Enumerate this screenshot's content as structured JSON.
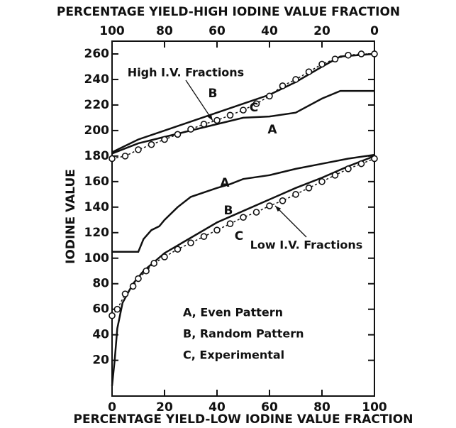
{
  "chart_data": {
    "type": "line",
    "title": "PERCENTAGE YIELD-HIGH IODINE VALUE FRACTION",
    "x_label": "PERCENTAGE YIELD-LOW IODINE VALUE FRACTION",
    "y_label": "IODINE VALUE",
    "xlim": [
      0,
      100
    ],
    "xticks": [
      0,
      20,
      40,
      60,
      80,
      100
    ],
    "x2lim": [
      100,
      0
    ],
    "x2ticks": [
      100,
      80,
      60,
      40,
      20,
      0
    ],
    "ylim": [
      -8,
      270
    ],
    "yticks": [
      20,
      40,
      60,
      80,
      100,
      120,
      140,
      160,
      180,
      200,
      220,
      240,
      260
    ],
    "annotations": [
      "High I.V. Fractions",
      "Low I.V. Fractions",
      "A, Even Pattern",
      "B, Random Pattern",
      "C, Experimental"
    ],
    "series": [
      {
        "name": "A",
        "color": "#111111",
        "dash": false,
        "marker": false,
        "x": [
          0,
          10,
          20,
          30,
          40,
          50,
          60,
          70,
          80,
          87,
          100
        ],
        "values": [
          182,
          190,
          195,
          200,
          205,
          210,
          211,
          214,
          225,
          231,
          231
        ]
      },
      {
        "name": "B",
        "color": "#111111",
        "dash": false,
        "marker": false,
        "x": [
          0,
          10,
          20,
          30,
          40,
          50,
          60,
          70,
          80,
          87,
          100
        ],
        "values": [
          183,
          193,
          200,
          207,
          214,
          221,
          228,
          238,
          250,
          258,
          260
        ]
      },
      {
        "name": "C",
        "color": "#111111",
        "dash": true,
        "marker": true,
        "x": [
          0,
          5,
          10,
          15,
          20,
          25,
          30,
          35,
          40,
          45,
          50,
          55,
          60,
          65,
          70,
          75,
          80,
          85,
          90,
          95,
          100
        ],
        "values": [
          178,
          180,
          185,
          189,
          193,
          197,
          201,
          205,
          208,
          212,
          216,
          221,
          227,
          235,
          240,
          246,
          252,
          256,
          259,
          260,
          260
        ]
      },
      {
        "name": "A",
        "color": "#111111",
        "dash": false,
        "marker": false,
        "x": [
          0,
          10,
          12,
          15,
          18,
          20,
          25,
          30,
          40,
          45,
          50,
          60,
          70,
          80,
          90,
          100
        ],
        "values": [
          105,
          105,
          115,
          122,
          125,
          130,
          140,
          148,
          155,
          158,
          162,
          165,
          170,
          174,
          178,
          181
        ]
      },
      {
        "name": "B",
        "color": "#111111",
        "dash": false,
        "marker": false,
        "x": [
          0,
          1,
          2,
          4,
          8,
          12,
          16,
          20,
          30,
          40,
          50,
          60,
          70,
          80,
          90,
          100
        ],
        "values": [
          0,
          20,
          45,
          65,
          80,
          90,
          97,
          104,
          116,
          128,
          137,
          146,
          155,
          163,
          172,
          180
        ]
      },
      {
        "name": "C",
        "color": "#111111",
        "dash": true,
        "marker": true,
        "x": [
          0,
          2,
          5,
          8,
          10,
          13,
          16,
          20,
          25,
          30,
          35,
          40,
          45,
          50,
          55,
          60,
          65,
          70,
          75,
          80,
          85,
          90,
          95,
          100
        ],
        "values": [
          55,
          60,
          72,
          78,
          84,
          90,
          96,
          101,
          107,
          112,
          117,
          122,
          127,
          132,
          136,
          141,
          145,
          150,
          155,
          160,
          165,
          170,
          174,
          178
        ]
      }
    ]
  }
}
